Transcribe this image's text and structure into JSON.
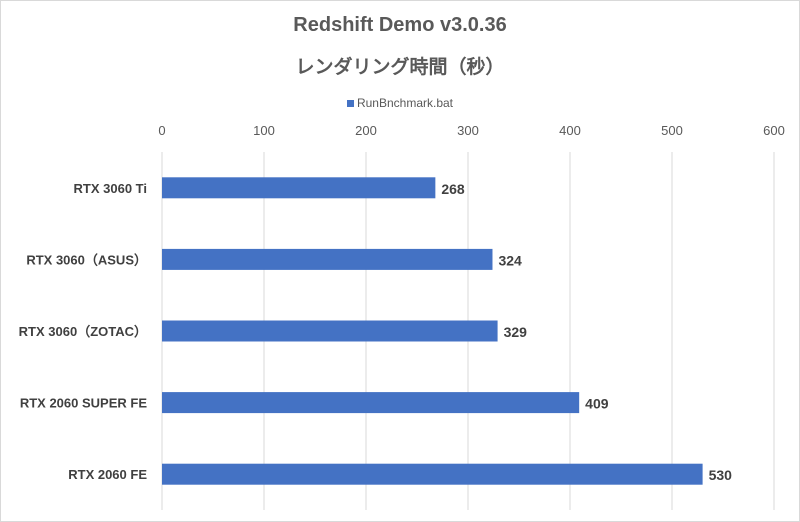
{
  "chart_data": {
    "type": "bar",
    "orientation": "horizontal",
    "title": "Redshift Demo v3.0.36",
    "subtitle": "レンダリング時間（秒）",
    "legend": [
      "RunBnchmark.bat"
    ],
    "legend_position": "top",
    "categories": [
      "RTX 3060 Ti",
      "RTX 3060（ASUS）",
      "RTX 3060（ZOTAC）",
      "RTX 2060 SUPER FE",
      "RTX 2060 FE"
    ],
    "series": [
      {
        "name": "RunBnchmark.bat",
        "values": [
          268,
          324,
          329,
          409,
          530
        ],
        "color": "#4472c4"
      }
    ],
    "xlim": [
      0,
      600
    ],
    "xticks": [
      0,
      100,
      200,
      300,
      400,
      500,
      600
    ],
    "x_axis_position": "top",
    "grid": true,
    "xlabel": "",
    "ylabel": ""
  }
}
